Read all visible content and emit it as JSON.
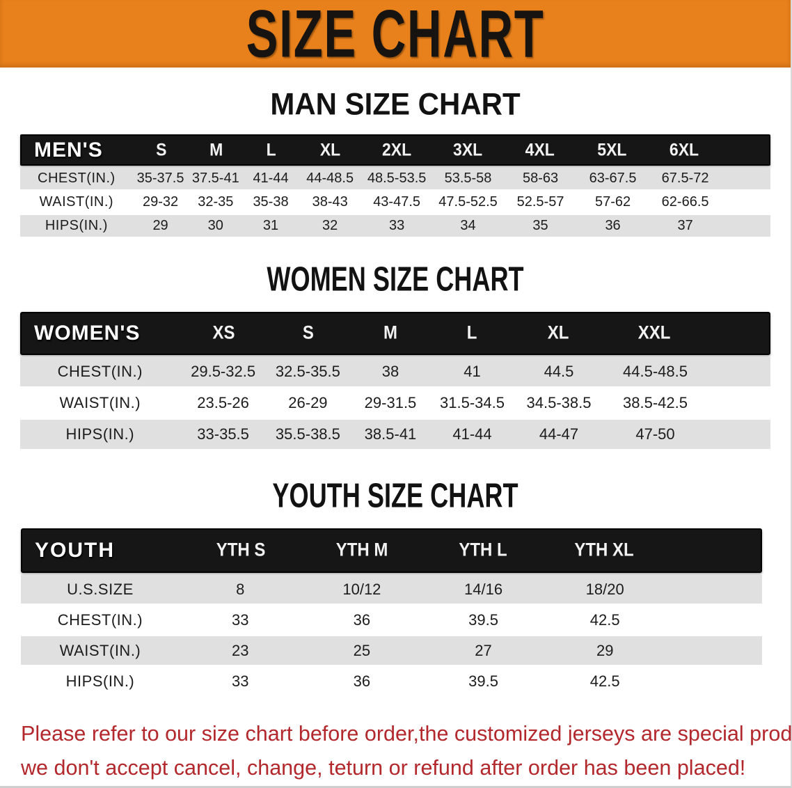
{
  "banner": {
    "title": "SIZE CHART"
  },
  "colors": {
    "banner_bg": "#e8811c",
    "bar_bg": "#161616",
    "stripe": "#e0e0e0",
    "disclaimer": "#b3282c",
    "text": "#1c1c1c"
  },
  "sections": [
    {
      "id": "men",
      "heading": "MAN SIZE CHART",
      "header_label": "MEN'S",
      "columns": [
        "S",
        "M",
        "L",
        "XL",
        "2XL",
        "3XL",
        "4XL",
        "5XL",
        "6XL"
      ],
      "rows": [
        {
          "label": "CHEST(IN.)",
          "values": [
            "35-37.5",
            "37.5-41",
            "41-44",
            "44-48.5",
            "48.5-53.5",
            "53.5-58",
            "58-63",
            "63-67.5",
            "67.5-72"
          ]
        },
        {
          "label": "WAIST(IN.)",
          "values": [
            "29-32",
            "32-35",
            "35-38",
            "38-43",
            "43-47.5",
            "47.5-52.5",
            "52.5-57",
            "57-62",
            "62-66.5"
          ]
        },
        {
          "label": "HIPS(IN.)",
          "values": [
            "29",
            "30",
            "31",
            "32",
            "33",
            "34",
            "35",
            "36",
            "37"
          ]
        }
      ]
    },
    {
      "id": "women",
      "heading": "WOMEN SIZE CHART",
      "header_label": "WOMEN'S",
      "columns": [
        "XS",
        "S",
        "M",
        "L",
        "XL",
        "XXL"
      ],
      "rows": [
        {
          "label": "CHEST(IN.)",
          "values": [
            "29.5-32.5",
            "32.5-35.5",
            "38",
            "41",
            "44.5",
            "44.5-48.5"
          ]
        },
        {
          "label": "WAIST(IN.)",
          "values": [
            "23.5-26",
            "26-29",
            "29-31.5",
            "31.5-34.5",
            "34.5-38.5",
            "38.5-42.5"
          ]
        },
        {
          "label": "HIPS(IN.)",
          "values": [
            "33-35.5",
            "35.5-38.5",
            "38.5-41",
            "41-44",
            "44-47",
            "47-50"
          ]
        }
      ]
    },
    {
      "id": "youth",
      "heading": "YOUTH SIZE CHART",
      "header_label": "YOUTH",
      "columns": [
        "YTH S",
        "YTH M",
        "YTH L",
        "YTH XL"
      ],
      "rows": [
        {
          "label": "U.S.SIZE",
          "values": [
            "8",
            "10/12",
            "14/16",
            "18/20"
          ]
        },
        {
          "label": "CHEST(IN.)",
          "values": [
            "33",
            "36",
            "39.5",
            "42.5"
          ]
        },
        {
          "label": "WAIST(IN.)",
          "values": [
            "23",
            "25",
            "27",
            "29"
          ]
        },
        {
          "label": "HIPS(IN.)",
          "values": [
            "33",
            "36",
            "39.5",
            "42.5"
          ]
        }
      ]
    }
  ],
  "disclaimer": {
    "line1": "Please refer to our size chart before order,the customized jerseys are special products,",
    "line2": "we don't accept cancel, change, teturn or refund after order has been placed!"
  }
}
